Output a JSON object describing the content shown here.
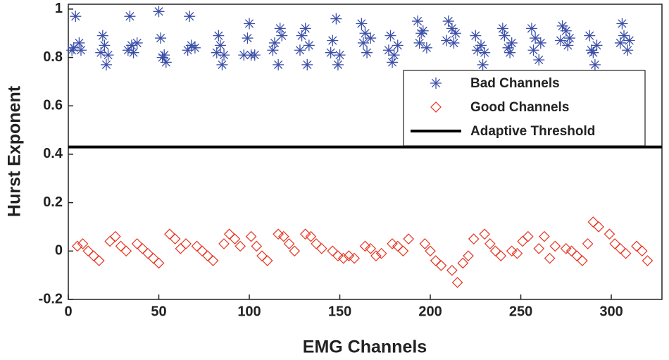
{
  "chart_data": {
    "type": "scatter",
    "x_label": "EMG Channels",
    "y_label": "Hurst Exponent",
    "xlim": [
      0,
      328
    ],
    "ylim": [
      -0.2,
      1.02
    ],
    "xticks": [
      0,
      50,
      100,
      150,
      200,
      250,
      300
    ],
    "yticks": [
      -0.2,
      0,
      0.2,
      0.4,
      0.6,
      0.8,
      1
    ],
    "legend": "upper right",
    "series": [
      {
        "name": "Bad Channels",
        "color": "#3b4fa8",
        "marker": "asterisk",
        "x": [
          2,
          3,
          4,
          6,
          7,
          18,
          19,
          20,
          21,
          22,
          33,
          34,
          35,
          36,
          38,
          50,
          51,
          52,
          53,
          54,
          66,
          67,
          68,
          70,
          82,
          83,
          84,
          85,
          86,
          97,
          99,
          100,
          101,
          103,
          113,
          114,
          116,
          117,
          118,
          128,
          129,
          131,
          132,
          133,
          145,
          146,
          148,
          149,
          150,
          162,
          163,
          164,
          165,
          167,
          177,
          178,
          179,
          180,
          182,
          193,
          194,
          195,
          196,
          198,
          209,
          210,
          212,
          213,
          214,
          225,
          226,
          228,
          229,
          230,
          240,
          241,
          243,
          244,
          245,
          256,
          257,
          258,
          260,
          261,
          272,
          273,
          275,
          276,
          277,
          288,
          289,
          290,
          291,
          292,
          305,
          306,
          307,
          309,
          310
        ],
        "values": [
          0.83,
          0.84,
          0.97,
          0.86,
          0.83,
          0.82,
          0.89,
          0.85,
          0.77,
          0.81,
          0.83,
          0.97,
          0.85,
          0.82,
          0.86,
          0.99,
          0.88,
          0.8,
          0.81,
          0.78,
          0.83,
          0.97,
          0.85,
          0.84,
          0.82,
          0.89,
          0.85,
          0.77,
          0.81,
          0.81,
          0.88,
          0.94,
          0.81,
          0.81,
          0.83,
          0.86,
          0.77,
          0.92,
          0.89,
          0.83,
          0.89,
          0.92,
          0.77,
          0.85,
          0.82,
          0.87,
          0.96,
          0.77,
          0.81,
          0.94,
          0.86,
          0.9,
          0.82,
          0.88,
          0.83,
          0.89,
          0.78,
          0.81,
          0.85,
          0.95,
          0.86,
          0.9,
          0.91,
          0.84,
          0.87,
          0.95,
          0.92,
          0.86,
          0.9,
          0.89,
          0.83,
          0.85,
          0.77,
          0.82,
          0.92,
          0.89,
          0.84,
          0.82,
          0.86,
          0.92,
          0.83,
          0.88,
          0.79,
          0.86,
          0.87,
          0.93,
          0.91,
          0.85,
          0.88,
          0.89,
          0.83,
          0.82,
          0.77,
          0.85,
          0.86,
          0.94,
          0.89,
          0.83,
          0.87
        ]
      },
      {
        "name": "Good Channels",
        "color": "#e8331f",
        "marker": "diamond",
        "x": [
          5,
          8,
          11,
          14,
          17,
          23,
          26,
          29,
          32,
          38,
          41,
          44,
          47,
          50,
          56,
          59,
          62,
          65,
          71,
          74,
          77,
          80,
          86,
          89,
          92,
          95,
          101,
          104,
          107,
          110,
          116,
          119,
          122,
          125,
          131,
          134,
          137,
          140,
          146,
          149,
          152,
          155,
          158,
          164,
          167,
          170,
          173,
          179,
          182,
          185,
          188,
          197,
          200,
          203,
          206,
          212,
          215,
          218,
          221,
          224,
          230,
          233,
          236,
          239,
          245,
          248,
          251,
          254,
          260,
          263,
          266,
          269,
          275,
          278,
          281,
          284,
          287,
          290,
          293,
          299,
          302,
          305,
          308,
          314,
          317,
          320
        ],
        "values": [
          0.02,
          0.03,
          0.0,
          -0.02,
          -0.04,
          0.04,
          0.06,
          0.02,
          0.0,
          0.03,
          0.01,
          -0.01,
          -0.03,
          -0.05,
          0.07,
          0.05,
          0.01,
          0.03,
          0.02,
          0.0,
          -0.02,
          -0.04,
          0.03,
          0.07,
          0.05,
          0.02,
          0.06,
          0.02,
          -0.02,
          -0.04,
          0.07,
          0.06,
          0.03,
          0.0,
          0.07,
          0.06,
          0.03,
          0.01,
          0.0,
          -0.02,
          -0.03,
          -0.02,
          -0.03,
          0.02,
          0.01,
          -0.02,
          -0.01,
          0.03,
          0.02,
          0.0,
          0.05,
          0.03,
          0.0,
          -0.04,
          -0.06,
          -0.08,
          -0.13,
          -0.05,
          -0.02,
          0.05,
          0.07,
          0.03,
          0.0,
          -0.02,
          0.0,
          -0.01,
          0.04,
          0.06,
          0.01,
          0.06,
          -0.03,
          0.02,
          0.01,
          0.0,
          -0.02,
          -0.04,
          0.03,
          0.12,
          0.1,
          0.07,
          0.03,
          0.01,
          -0.01,
          0.02,
          0.0,
          -0.04
        ]
      },
      {
        "name": "Adaptive Threshold",
        "color": "#000000",
        "marker": "line",
        "x": [
          0,
          328
        ],
        "values": [
          0.43,
          0.43
        ]
      }
    ]
  }
}
